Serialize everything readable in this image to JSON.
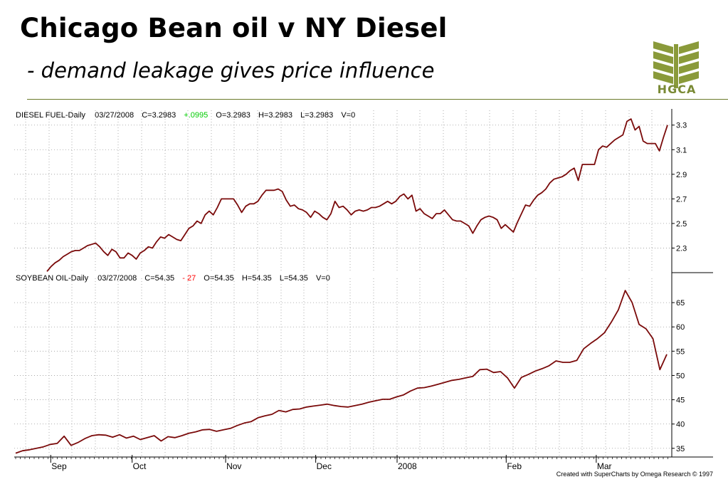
{
  "slide": {
    "title": "Chicago Bean oil v NY Diesel",
    "subtitle": "- demand leakage gives price influence",
    "logo_text": "HGCA",
    "credit": "Created with SuperCharts by Omega Research © 1997"
  },
  "colors": {
    "line": "#7a0a0a",
    "grid": "#9a9a9a",
    "rule": "#6b7a2a",
    "logo": "#8a9a3a",
    "change_up": "#00cc00",
    "change_down": "#ff0000"
  },
  "chart_data": [
    {
      "type": "line",
      "header": {
        "name": "DIESEL FUEL-Daily",
        "date": "03/27/2008",
        "close": "C=3.2983",
        "change": "+.0995",
        "open": "O=3.2983",
        "high": "H=3.2983",
        "low": "L=3.2983",
        "volume": "V=0"
      },
      "ylim": [
        2.1,
        3.42
      ],
      "yticks": [
        "2.3",
        "2.5",
        "2.7",
        "2.9",
        "3.1",
        "3.3"
      ],
      "grid": true,
      "series": [
        {
          "x": [
            2,
            6,
            10,
            14,
            18,
            22,
            26,
            30,
            34,
            38,
            42,
            46,
            50,
            54,
            58,
            62,
            66,
            70,
            74,
            78,
            82,
            86,
            90,
            94,
            98,
            102,
            106,
            110,
            114,
            118,
            122,
            126,
            130,
            134,
            138,
            142,
            146,
            150,
            154,
            158,
            162,
            166,
            170,
            174,
            178,
            182,
            186,
            190,
            194,
            198,
            202,
            206,
            210,
            214,
            218,
            222,
            226,
            230,
            234,
            238,
            242,
            246,
            250,
            254,
            258,
            262,
            266,
            270,
            274,
            278,
            282,
            286,
            290,
            294,
            298,
            302,
            306,
            310,
            314,
            318,
            322,
            326,
            330,
            334,
            338,
            342,
            346,
            350,
            354,
            358,
            362,
            366,
            370,
            374,
            378,
            382,
            386,
            390,
            394,
            398,
            402,
            406,
            410,
            414,
            418,
            422,
            426,
            430,
            434,
            438,
            442,
            446,
            450,
            454,
            458,
            462,
            466,
            470,
            474,
            478,
            482,
            486,
            490,
            494,
            498,
            502,
            506,
            510,
            514,
            518,
            522,
            526,
            530,
            534,
            538,
            542,
            546,
            550,
            554,
            558,
            562,
            566,
            570,
            574,
            578,
            582,
            586,
            590,
            594,
            598,
            602,
            606,
            610,
            614
          ],
          "values": [
            2.11,
            2.15,
            2.18,
            2.2,
            2.23,
            2.25,
            2.27,
            2.28,
            2.28,
            2.3,
            2.32,
            2.33,
            2.34,
            2.31,
            2.27,
            2.24,
            2.29,
            2.27,
            2.22,
            2.22,
            2.26,
            2.24,
            2.21,
            2.26,
            2.28,
            2.31,
            2.3,
            2.35,
            2.39,
            2.38,
            2.41,
            2.39,
            2.37,
            2.36,
            2.41,
            2.46,
            2.48,
            2.52,
            2.5,
            2.57,
            2.6,
            2.57,
            2.63,
            2.7,
            2.7,
            2.7,
            2.7,
            2.65,
            2.59,
            2.64,
            2.66,
            2.66,
            2.68,
            2.73,
            2.77,
            2.77,
            2.77,
            2.78,
            2.76,
            2.69,
            2.64,
            2.65,
            2.62,
            2.61,
            2.59,
            2.55,
            2.6,
            2.58,
            2.55,
            2.53,
            2.58,
            2.68,
            2.63,
            2.64,
            2.61,
            2.57,
            2.6,
            2.61,
            2.6,
            2.61,
            2.63,
            2.63,
            2.64,
            2.66,
            2.68,
            2.66,
            2.68,
            2.72,
            2.74,
            2.7,
            2.73,
            2.6,
            2.62,
            2.58,
            2.56,
            2.54,
            2.58,
            2.58,
            2.61,
            2.57,
            2.53,
            2.52,
            2.52,
            2.5,
            2.48,
            2.42,
            2.48,
            2.53,
            2.55,
            2.56,
            2.55,
            2.53,
            2.46,
            2.49,
            2.46,
            2.43,
            2.51,
            2.58,
            2.65,
            2.64,
            2.69,
            2.73,
            2.75,
            2.78,
            2.83,
            2.86,
            2.87,
            2.88,
            2.9,
            2.93,
            2.95,
            2.85,
            2.98,
            2.98,
            2.98,
            2.98,
            3.1,
            3.13,
            3.12,
            3.15,
            3.18,
            3.2,
            3.22,
            3.33,
            3.35,
            3.26,
            3.29,
            3.17,
            3.15,
            3.15,
            3.15,
            3.09,
            3.2,
            3.3
          ]
        }
      ]
    },
    {
      "type": "line",
      "header": {
        "name": "SOYBEAN OIL-Daily",
        "date": "03/27/2008",
        "close": "C=54.35",
        "change": "- 27",
        "open": "O=54.35",
        "high": "H=54.35",
        "low": "L=54.35",
        "volume": "V=0"
      },
      "ylim": [
        33.5,
        70
      ],
      "yticks": [
        "35",
        "40",
        "45",
        "50",
        "55",
        "60",
        "65"
      ],
      "xticks": [
        {
          "label": "Sep",
          "x": 3
        },
        {
          "label": "Oct",
          "x": 50
        },
        {
          "label": "Nov",
          "x": 104
        },
        {
          "label": "Dec",
          "x": 156
        },
        {
          "label": "2008",
          "x": 203
        },
        {
          "label": "Feb",
          "x": 266
        },
        {
          "label": "Mar",
          "x": 318
        }
      ],
      "grid": true,
      "series": [
        {
          "x": [
            0,
            4,
            8,
            12,
            16,
            20,
            24,
            28,
            32,
            36,
            40,
            44,
            48,
            52,
            56,
            60,
            64,
            68,
            72,
            76,
            80,
            84,
            88,
            92,
            96,
            100,
            104,
            108,
            112,
            116,
            120,
            124,
            128,
            132,
            136,
            140,
            144,
            148,
            152,
            156,
            160,
            164,
            168,
            172,
            176,
            180,
            184,
            188,
            192,
            196,
            200,
            204,
            208,
            212,
            216,
            220,
            224,
            228,
            232,
            236,
            240,
            244,
            248,
            252,
            256,
            260,
            264,
            268,
            272,
            276,
            280,
            284,
            288,
            292,
            296,
            300,
            304,
            308,
            312,
            316,
            320,
            324,
            328,
            332,
            336,
            340,
            344,
            348,
            352,
            356,
            360,
            364,
            368,
            372,
            376
          ],
          "values": [
            34,
            34.5,
            34.7,
            35,
            35.3,
            35.8,
            36,
            37.5,
            35.6,
            36.2,
            37,
            37.6,
            37.8,
            37.7,
            37.3,
            37.8,
            37.1,
            37.5,
            36.8,
            37.2,
            37.6,
            36.5,
            37.4,
            37.2,
            37.6,
            38.1,
            38.4,
            38.8,
            38.9,
            38.5,
            38.8,
            39.1,
            39.7,
            40.2,
            40.5,
            41.3,
            41.7,
            42,
            42.8,
            42.5,
            43,
            43.1,
            43.5,
            43.7,
            43.9,
            44.1,
            43.8,
            43.6,
            43.5,
            43.8,
            44.1,
            44.5,
            44.8,
            45.1,
            45.1,
            45.6,
            46,
            46.8,
            47.4,
            47.5,
            47.8,
            48.2,
            48.6,
            49,
            49.2,
            49.5,
            49.8,
            51.2,
            51.3,
            50.6,
            50.8,
            49.5,
            47.4,
            49.6,
            50.2,
            50.9,
            51.4,
            52,
            53,
            52.7,
            52.7,
            53.1,
            55.5,
            56.6,
            57.6,
            58.8,
            61,
            63.5,
            67.5,
            65,
            60.5,
            59.6,
            57.6,
            51.2,
            54.35
          ]
        }
      ]
    }
  ]
}
